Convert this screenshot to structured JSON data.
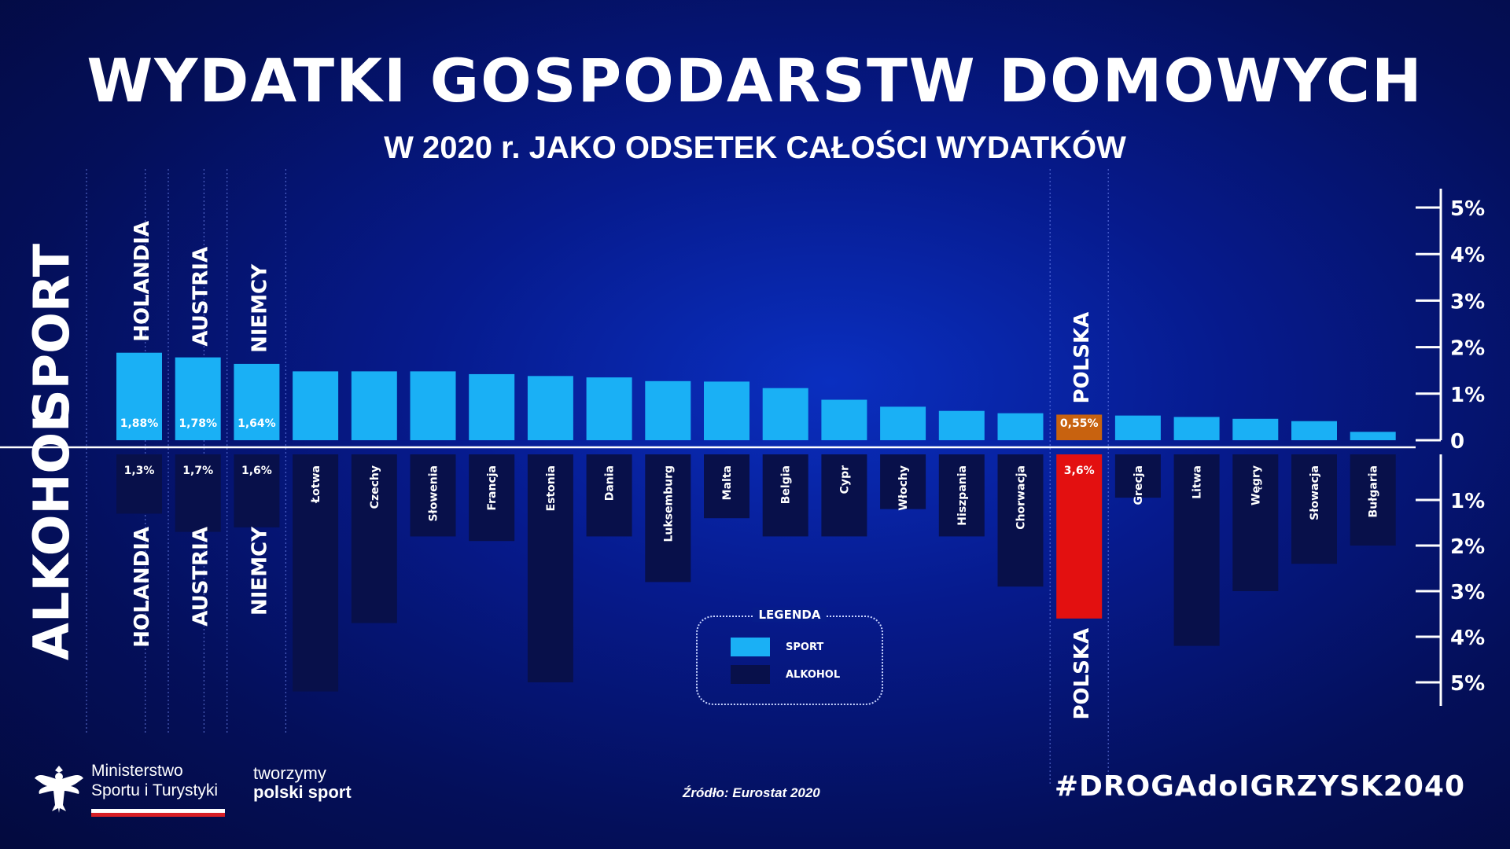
{
  "title": "WYDATKI GOSPODARSTW DOMOWYCH",
  "subtitle": "W 2020 r. JAKO ODSETEK CAŁOŚCI WYDATKÓW",
  "section_labels": {
    "top": "SPORT",
    "bottom": "ALKOHOL"
  },
  "legend": {
    "title": "LEGENDA",
    "sport": "SPORT",
    "alkohol": "ALKOHOL"
  },
  "colors": {
    "sport": "#1ab0f5",
    "alkohol": "#08104a",
    "poland_sport": "#c8620f",
    "poland_alkohol": "#e31010",
    "axis": "#ffffff"
  },
  "chart_data": {
    "type": "bar",
    "orientation": "diverging",
    "categories": [
      "Holandia",
      "Austria",
      "Niemcy",
      "Łotwa",
      "Czechy",
      "Słowenia",
      "Francja",
      "Estonia",
      "Dania",
      "Luksemburg",
      "Malta",
      "Belgia",
      "Cypr",
      "Włochy",
      "Hiszpania",
      "Chorwacja",
      "Polska",
      "Grecja",
      "Litwa",
      "Węgry",
      "Słowacja",
      "Bułgaria"
    ],
    "series": [
      {
        "name": "SPORT",
        "values": [
          1.88,
          1.78,
          1.64,
          1.48,
          1.48,
          1.48,
          1.42,
          1.38,
          1.35,
          1.27,
          1.26,
          1.12,
          0.87,
          0.72,
          0.63,
          0.58,
          0.55,
          0.53,
          0.5,
          0.46,
          0.41,
          0.18
        ]
      },
      {
        "name": "ALKOHOL",
        "values": [
          1.3,
          1.7,
          1.6,
          5.2,
          3.7,
          1.8,
          1.9,
          5.0,
          1.8,
          2.8,
          1.4,
          1.8,
          1.8,
          1.2,
          1.8,
          2.9,
          3.6,
          0.95,
          4.2,
          3.0,
          2.4,
          2.0
        ]
      }
    ],
    "data_labels": {
      "sport": {
        "0": "1,88%",
        "1": "1,78%",
        "2": "1,64%",
        "16": "0,55%"
      },
      "alkohol": {
        "0": "1,3%",
        "1": "1,7%",
        "2": "1,6%",
        "16": "3,6%"
      }
    },
    "highlight_names": {
      "sport": {
        "0": "HOLANDIA",
        "1": "AUSTRIA",
        "2": "NIEMCY",
        "16": "POLSKA"
      },
      "alkohol": {
        "0": "HOLANDIA",
        "1": "AUSTRIA",
        "2": "NIEMCY",
        "16": "POLSKA"
      }
    },
    "bar_labels": [
      "",
      "",
      "",
      "Łotwa",
      "Czechy",
      "Słowenia",
      "Francja",
      "Estonia",
      "Dania",
      "Luksemburg",
      "Malta",
      "Belgia",
      "Cypr",
      "Włochy",
      "Hiszpania",
      "Chorwacja",
      "",
      "Grecja",
      "Litwa",
      "Węgry",
      "Słowacja",
      "Bułgaria"
    ],
    "y_ticks_up": [
      "0",
      "1%",
      "2%",
      "3%",
      "4%",
      "5%"
    ],
    "y_ticks_down": [
      "1%",
      "2%",
      "3%",
      "4%",
      "5%"
    ],
    "ylim_up": [
      0,
      5
    ],
    "ylim_down": [
      0,
      5
    ]
  },
  "footer": {
    "ministry_line1": "Ministerstwo",
    "ministry_line2": "Sportu i Turystyki",
    "tworzymy_line1": "tworzymy",
    "tworzymy_line2": "polski sport",
    "source": "Źródło: Eurostat 2020",
    "hashtag": "#DROGAdoIGRZYSK2040"
  }
}
